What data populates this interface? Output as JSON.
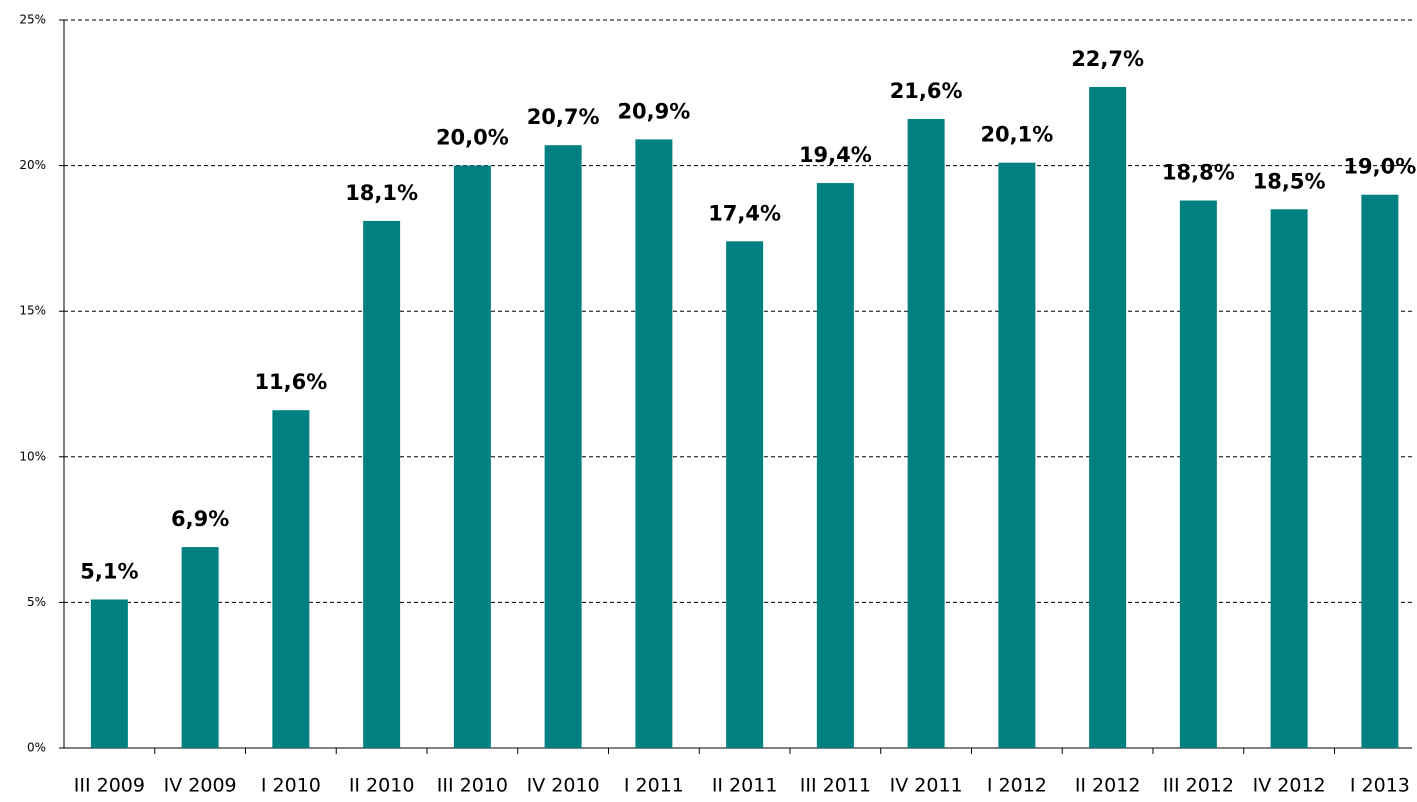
{
  "chart_data": {
    "type": "bar",
    "categories": [
      "III 2009",
      "IV 2009",
      "I 2010",
      "II 2010",
      "III 2010",
      "IV 2010",
      "I 2011",
      "II 2011",
      "III 2011",
      "IV 2011",
      "I 2012",
      "II 2012",
      "III 2012",
      "IV 2012",
      "I 2013"
    ],
    "values": [
      5.1,
      6.9,
      11.6,
      18.1,
      20.0,
      20.7,
      20.9,
      17.4,
      19.4,
      21.6,
      20.1,
      22.7,
      18.8,
      18.5,
      19.0
    ],
    "value_labels": [
      "5,1%",
      "6,9%",
      "11,6%",
      "18,1%",
      "20,0%",
      "20,7%",
      "20,9%",
      "17,4%",
      "19,4%",
      "21,6%",
      "20,1%",
      "22,7%",
      "18,8%",
      "18,5%",
      "19,0%"
    ],
    "color": "#008080",
    "ylim": [
      0,
      25
    ],
    "yticks": [
      {
        "value": 0,
        "label": "0%"
      },
      {
        "value": 5,
        "label": "5%"
      },
      {
        "value": 10,
        "label": "10%"
      },
      {
        "value": 15,
        "label": "15%"
      },
      {
        "value": 20,
        "label": "20%"
      },
      {
        "value": 25,
        "label": "25%"
      }
    ],
    "grid": true
  }
}
